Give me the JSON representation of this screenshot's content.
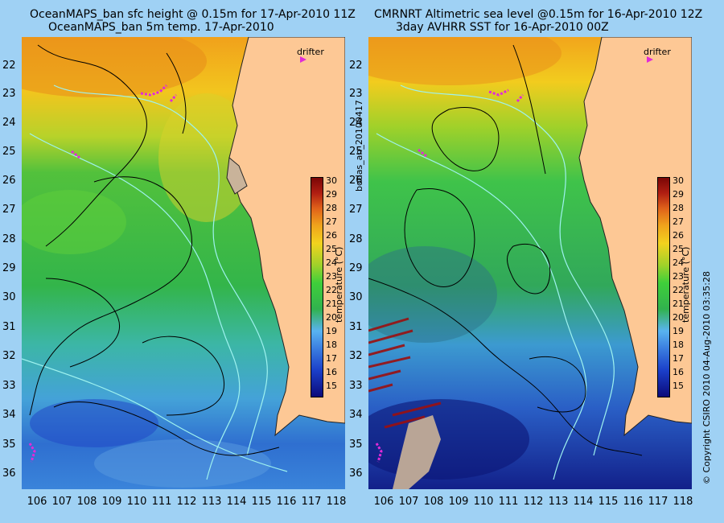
{
  "left_panel": {
    "title_line1": "OceanMAPS_ban sfc height @ 0.15m for 17-Apr-2010 11Z",
    "title_line2": "OceanMAPS_ban 5m temp. 17-Apr-2010",
    "drifter_label": "drifter"
  },
  "right_panel": {
    "title_line1": "CMRNRT Altimetric sea level  @0.15m  for 16-Apr-2010 12Z",
    "title_line2": "3day AVHRR SST for 16-Apr-2010 00Z",
    "drifter_label": "drifter"
  },
  "middle_label": "bodas_an_20100417",
  "copyright": "© Copyright CSIRO 2010    04-Aug-2010 03:35:28",
  "axes": {
    "y_ticks": [
      "22",
      "23",
      "24",
      "25",
      "26",
      "27",
      "28",
      "29",
      "30",
      "31",
      "32",
      "33",
      "34",
      "35",
      "36"
    ],
    "x_ticks": [
      "106",
      "107",
      "108",
      "109",
      "110",
      "111",
      "112",
      "113",
      "114",
      "115",
      "116",
      "117",
      "118"
    ]
  },
  "colorbar": {
    "title": "temperature (°C)",
    "labels": [
      "30",
      "29",
      "28",
      "27",
      "26",
      "25",
      "24",
      "23",
      "22",
      "21",
      "20",
      "19",
      "18",
      "17",
      "16",
      "15"
    ],
    "range": [
      15,
      30
    ]
  },
  "colors": {
    "background": "#9fd1f4",
    "land": "#fdc895",
    "drifter": "#e02bd8"
  }
}
